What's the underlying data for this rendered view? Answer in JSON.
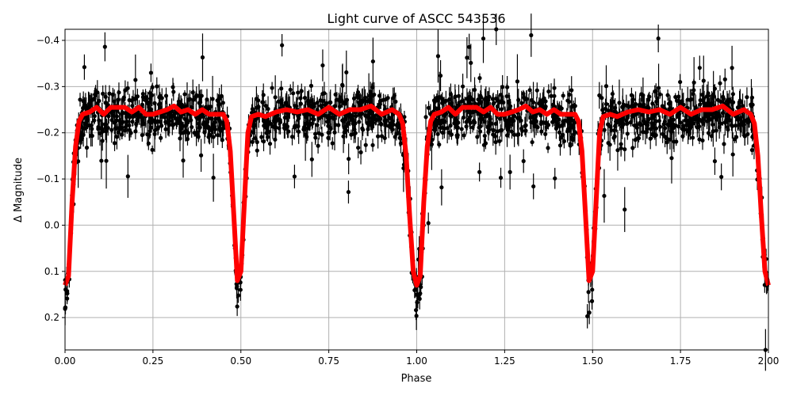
{
  "chart_data": {
    "type": "scatter",
    "title": "Light curve of ASCC 543536",
    "xlabel": "Phase",
    "ylabel": "Δ Magnitude",
    "xlim": [
      0,
      2
    ],
    "ylim": [
      0.27,
      -0.424
    ],
    "y_inverted": true,
    "grid": true,
    "legend": "none",
    "x_ticks": [
      "0.00",
      "0.25",
      "0.50",
      "0.75",
      "1.00",
      "1.25",
      "1.50",
      "1.75",
      "2.00"
    ],
    "x_tick_values": [
      0,
      0.25,
      0.5,
      0.75,
      1.0,
      1.25,
      1.5,
      1.75,
      2.0
    ],
    "y_ticks": [
      "−0.4",
      "−0.3",
      "−0.2",
      "−0.1",
      "0.0",
      "0.1",
      "0.2"
    ],
    "y_tick_values": [
      -0.4,
      -0.3,
      -0.2,
      -0.1,
      0.0,
      0.1,
      0.2
    ],
    "colors": {
      "observations": "#000000",
      "model": "#ff0000",
      "grid": "#b0b0b0"
    },
    "series": [
      {
        "kind": "errorbar-scatter",
        "style": "black points with vertical error bars",
        "baseline_magnitude": -0.24,
        "eclipse_phases": [
          0,
          0.5,
          1.0,
          1.5,
          2.0
        ]
      },
      {
        "kind": "line",
        "x": [
          0,
          0.01,
          0.02,
          0.03,
          0.04,
          0.05,
          0.07,
          0.09,
          0.11,
          0.13,
          0.15,
          0.17,
          0.19,
          0.21,
          0.23,
          0.25,
          0.27,
          0.29,
          0.31,
          0.33,
          0.35,
          0.37,
          0.39,
          0.41,
          0.43,
          0.45,
          0.46,
          0.47,
          0.48,
          0.49,
          0.5,
          0.51,
          0.52,
          0.53,
          0.55,
          0.57,
          0.6,
          0.63,
          0.66,
          0.69,
          0.72,
          0.75,
          0.78,
          0.81,
          0.84,
          0.87,
          0.9,
          0.93,
          0.95,
          0.96,
          0.97,
          0.98,
          0.99,
          1.0,
          1.01,
          1.02,
          1.03,
          1.04,
          1.05,
          1.07,
          1.09,
          1.11,
          1.13,
          1.15,
          1.17,
          1.19,
          1.21,
          1.23,
          1.25,
          1.27,
          1.29,
          1.31,
          1.33,
          1.35,
          1.37,
          1.39,
          1.41,
          1.43,
          1.45,
          1.46,
          1.47,
          1.48,
          1.49,
          1.5,
          1.51,
          1.52,
          1.53,
          1.55,
          1.57,
          1.6,
          1.63,
          1.66,
          1.69,
          1.72,
          1.75,
          1.78,
          1.81,
          1.84,
          1.87,
          1.9,
          1.93,
          1.95,
          1.96,
          1.97,
          1.98,
          1.99,
          2.0
        ],
        "y": [
          0.13,
          0.11,
          -0.05,
          -0.17,
          -0.225,
          -0.24,
          -0.245,
          -0.255,
          -0.24,
          -0.255,
          -0.255,
          -0.255,
          -0.245,
          -0.255,
          -0.24,
          -0.24,
          -0.245,
          -0.25,
          -0.258,
          -0.245,
          -0.25,
          -0.24,
          -0.25,
          -0.24,
          -0.24,
          -0.24,
          -0.225,
          -0.16,
          -0.02,
          0.12,
          0.1,
          -0.05,
          -0.2,
          -0.235,
          -0.24,
          -0.235,
          -0.245,
          -0.25,
          -0.245,
          -0.25,
          -0.24,
          -0.255,
          -0.24,
          -0.25,
          -0.25,
          -0.258,
          -0.24,
          -0.25,
          -0.24,
          -0.22,
          -0.15,
          -0.02,
          0.1,
          0.13,
          0.11,
          -0.05,
          -0.17,
          -0.225,
          -0.24,
          -0.245,
          -0.255,
          -0.24,
          -0.255,
          -0.255,
          -0.255,
          -0.245,
          -0.255,
          -0.24,
          -0.24,
          -0.245,
          -0.25,
          -0.258,
          -0.245,
          -0.25,
          -0.24,
          -0.25,
          -0.24,
          -0.24,
          -0.24,
          -0.225,
          -0.16,
          -0.02,
          0.12,
          0.1,
          -0.05,
          -0.2,
          -0.235,
          -0.24,
          -0.235,
          -0.245,
          -0.25,
          -0.245,
          -0.25,
          -0.24,
          -0.255,
          -0.24,
          -0.25,
          -0.25,
          -0.258,
          -0.24,
          -0.25,
          -0.24,
          -0.22,
          -0.15,
          -0.02,
          0.1,
          0.13
        ]
      }
    ]
  }
}
